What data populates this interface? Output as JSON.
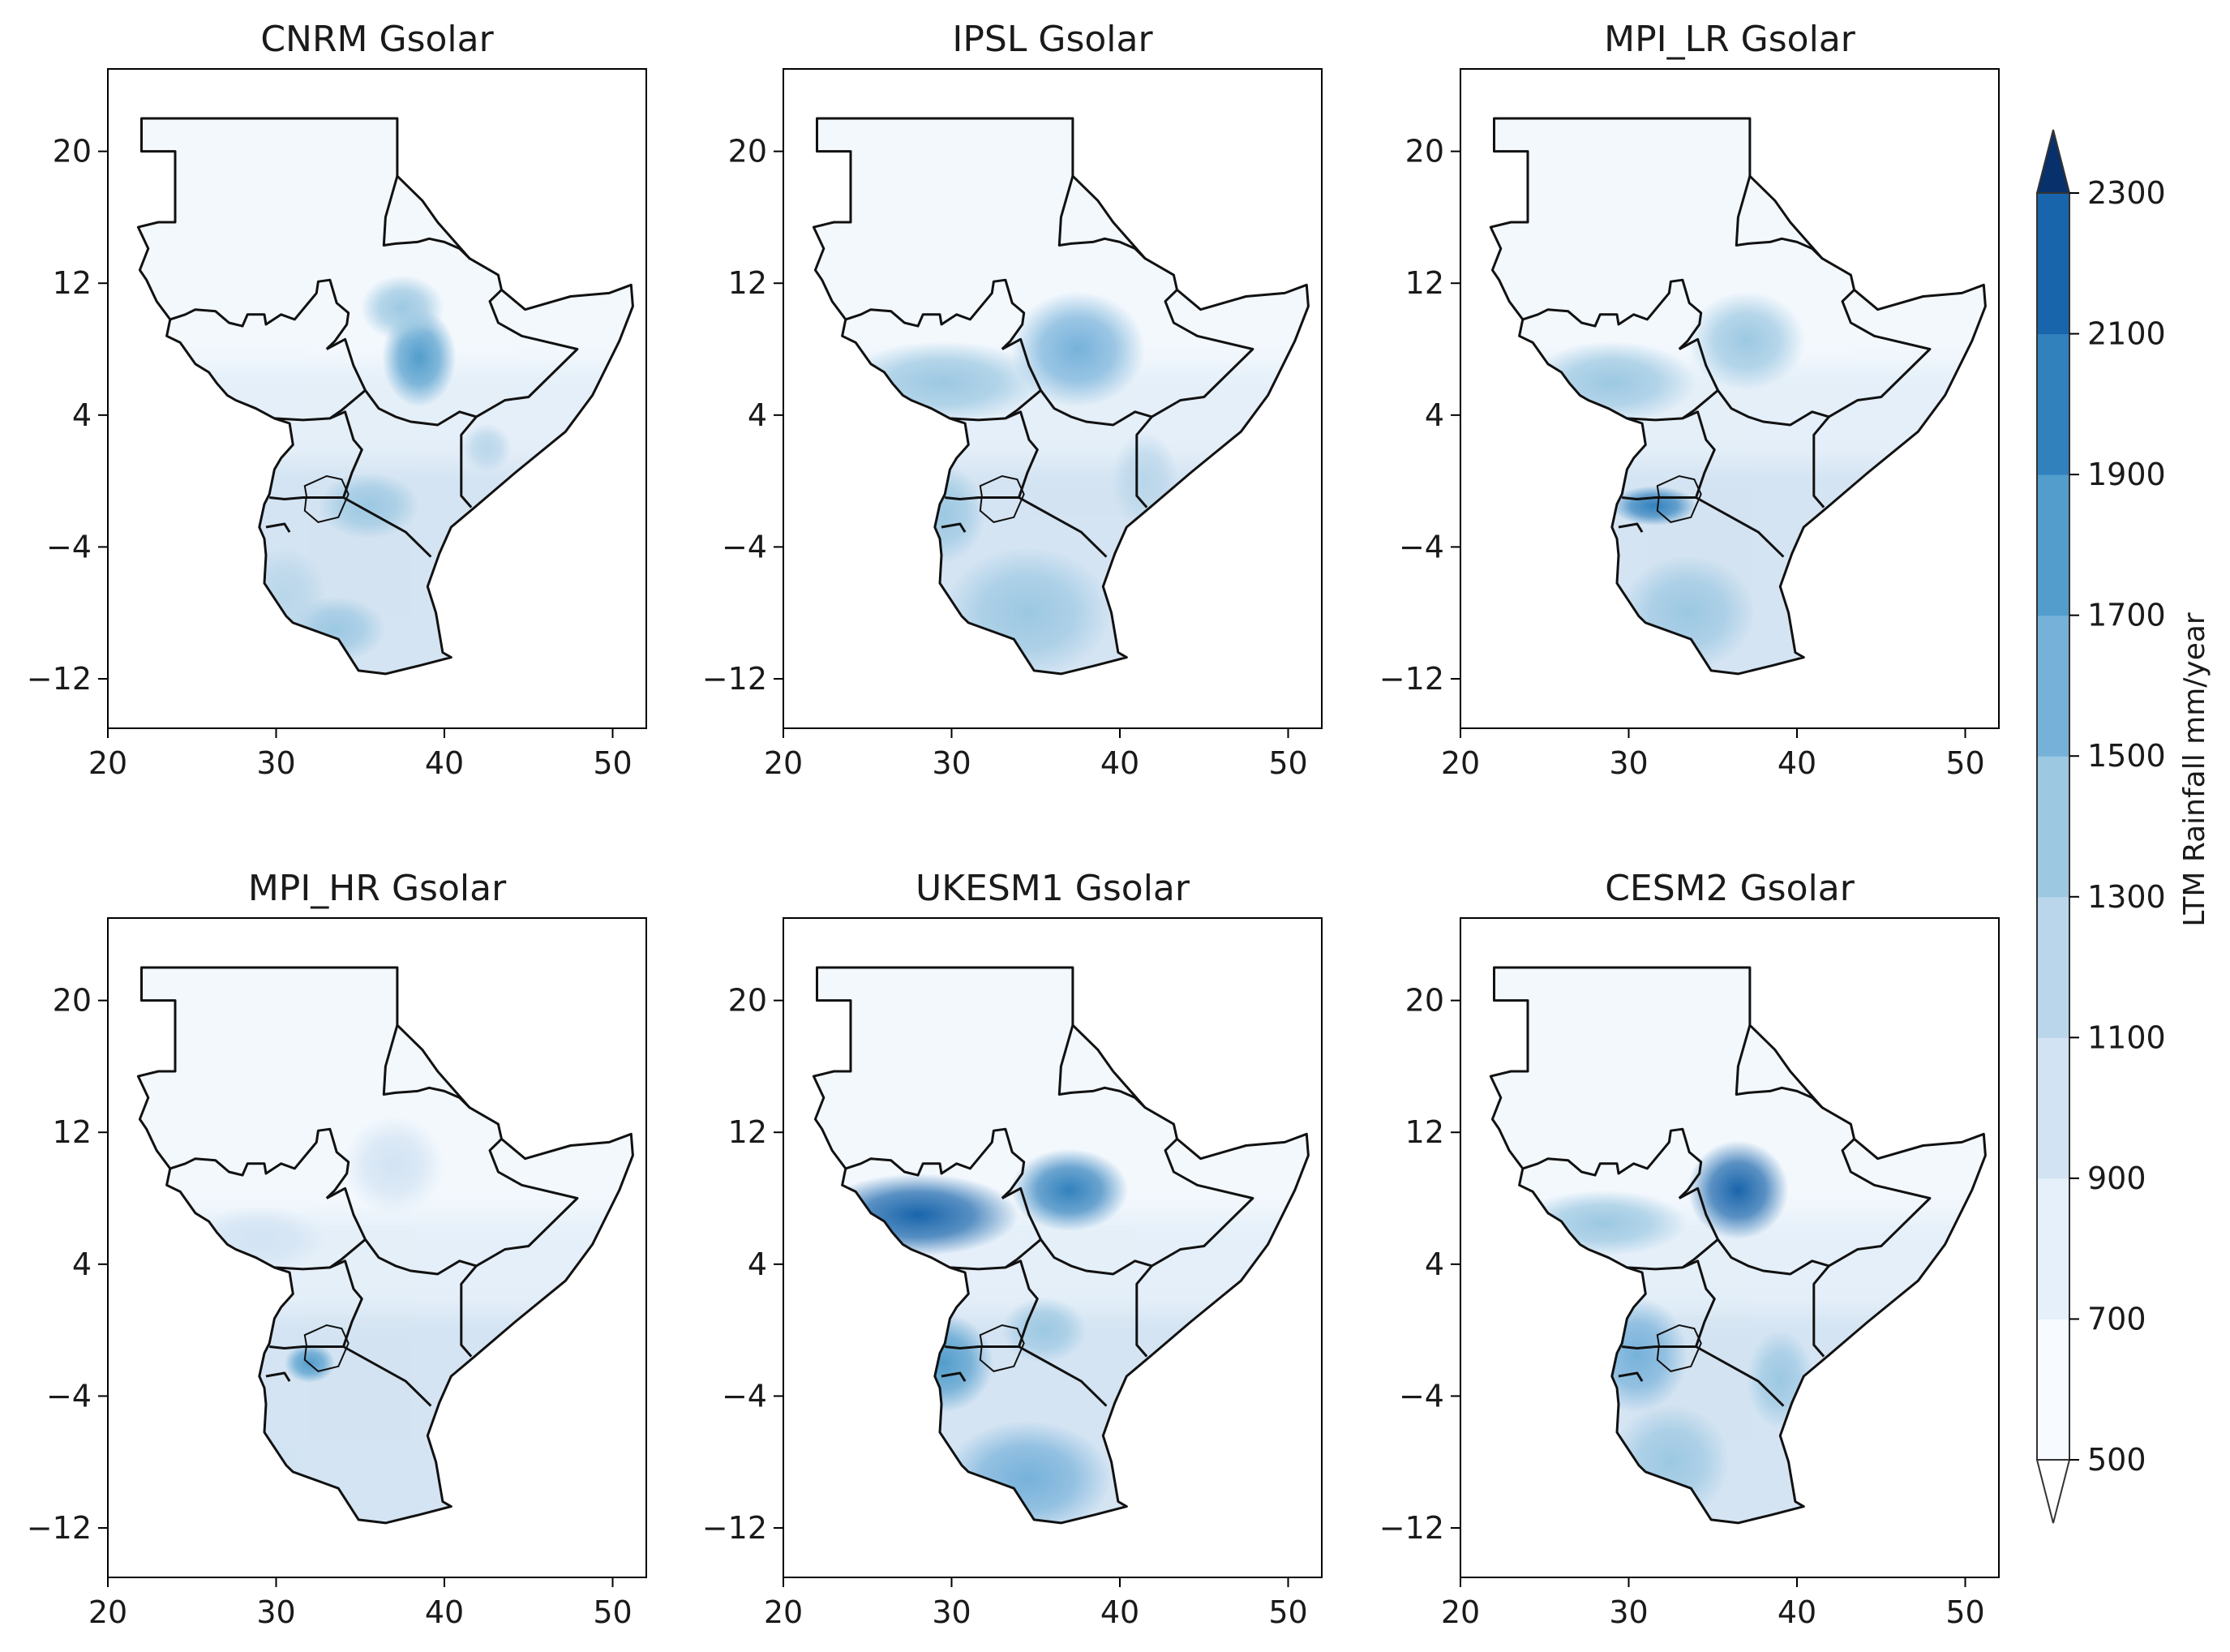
{
  "chart_data": {
    "type": "heatmap",
    "colorbar": {
      "label": "LTM Rainfall mm/year",
      "levels": [
        500,
        700,
        900,
        1100,
        1300,
        1500,
        1700,
        1900,
        2100,
        2300
      ],
      "colors": [
        "#f7fbff",
        "#e6f0fa",
        "#d2e3f3",
        "#b9d6ea",
        "#9cc8e2",
        "#76b1da",
        "#529dcc",
        "#3181bd",
        "#1965ab",
        "#08468f"
      ],
      "extend": "both",
      "under_color": "#ffffff",
      "over_color": "#08306b"
    },
    "x_ticks": [
      20,
      30,
      40,
      50
    ],
    "y_ticks": [
      20,
      12,
      4,
      -4,
      -12
    ],
    "xlim": [
      20,
      52
    ],
    "ylim": [
      -15,
      25
    ],
    "panels": [
      {
        "title": "CNRM Gsolar",
        "hotspots": [
          {
            "lon": 38.5,
            "lat": 7.5,
            "value": 1800,
            "rx": 2.2,
            "ry": 3
          },
          {
            "lon": 37.5,
            "lat": 10.5,
            "value": 1400,
            "rx": 2.5,
            "ry": 2
          },
          {
            "lon": 35.5,
            "lat": -1.5,
            "value": 1350,
            "rx": 3,
            "ry": 2
          },
          {
            "lon": 33.5,
            "lat": -9,
            "value": 1450,
            "rx": 3,
            "ry": 2
          },
          {
            "lon": 42.5,
            "lat": 2,
            "value": 1250,
            "rx": 1.5,
            "ry": 1.5
          },
          {
            "lon": 30.5,
            "lat": -7,
            "value": 1100,
            "rx": 2.5,
            "ry": 3
          }
        ]
      },
      {
        "title": "IPSL Gsolar",
        "hotspots": [
          {
            "lon": 37.5,
            "lat": 8,
            "value": 1500,
            "rx": 4,
            "ry": 3.5
          },
          {
            "lon": 29.5,
            "lat": 6,
            "value": 1300,
            "rx": 6,
            "ry": 2.5
          },
          {
            "lon": 29.5,
            "lat": -2,
            "value": 1400,
            "rx": 2.5,
            "ry": 3
          },
          {
            "lon": 34.5,
            "lat": -8,
            "value": 1400,
            "rx": 5,
            "ry": 4
          },
          {
            "lon": 41.5,
            "lat": 0,
            "value": 1250,
            "rx": 2,
            "ry": 3
          }
        ]
      },
      {
        "title": "MPI_LR Gsolar",
        "hotspots": [
          {
            "lon": 31.5,
            "lat": -1.5,
            "value": 1900,
            "rx": 2.5,
            "ry": 1.2
          },
          {
            "lon": 37,
            "lat": 8.5,
            "value": 1400,
            "rx": 3.5,
            "ry": 3
          },
          {
            "lon": 29,
            "lat": 6,
            "value": 1350,
            "rx": 5,
            "ry": 2.5
          },
          {
            "lon": 33.5,
            "lat": -8,
            "value": 1300,
            "rx": 4,
            "ry": 3.5
          }
        ]
      },
      {
        "title": "MPI_HR Gsolar",
        "hotspots": [
          {
            "lon": 32,
            "lat": -2,
            "value": 1700,
            "rx": 1.5,
            "ry": 1.2
          },
          {
            "lon": 37,
            "lat": 10,
            "value": 1000,
            "rx": 3,
            "ry": 3
          },
          {
            "lon": 29,
            "lat": 5.5,
            "value": 950,
            "rx": 4,
            "ry": 2
          },
          {
            "lon": 30,
            "lat": -8,
            "value": 950,
            "rx": 2,
            "ry": 2
          }
        ]
      },
      {
        "title": "UKESM1 Gsolar",
        "hotspots": [
          {
            "lon": 28,
            "lat": 7,
            "value": 2100,
            "rx": 6,
            "ry": 2.5
          },
          {
            "lon": 37,
            "lat": 8.5,
            "value": 1900,
            "rx": 3.5,
            "ry": 2.5
          },
          {
            "lon": 29.5,
            "lat": -2,
            "value": 1700,
            "rx": 3,
            "ry": 3
          },
          {
            "lon": 34.5,
            "lat": -9,
            "value": 1600,
            "rx": 5,
            "ry": 3.5
          },
          {
            "lon": 35.5,
            "lat": 0,
            "value": 1300,
            "rx": 2.5,
            "ry": 2
          }
        ]
      },
      {
        "title": "CESM2 Gsolar",
        "hotspots": [
          {
            "lon": 36.5,
            "lat": 8.5,
            "value": 2100,
            "rx": 3,
            "ry": 3
          },
          {
            "lon": 28.5,
            "lat": 6.5,
            "value": 1450,
            "rx": 5,
            "ry": 2
          },
          {
            "lon": 30.5,
            "lat": -1.5,
            "value": 1600,
            "rx": 3,
            "ry": 3.5
          },
          {
            "lon": 32.5,
            "lat": -8,
            "value": 1450,
            "rx": 3.5,
            "ry": 3.5
          },
          {
            "lon": 39,
            "lat": -3,
            "value": 1300,
            "rx": 2,
            "ry": 3
          }
        ]
      }
    ]
  }
}
